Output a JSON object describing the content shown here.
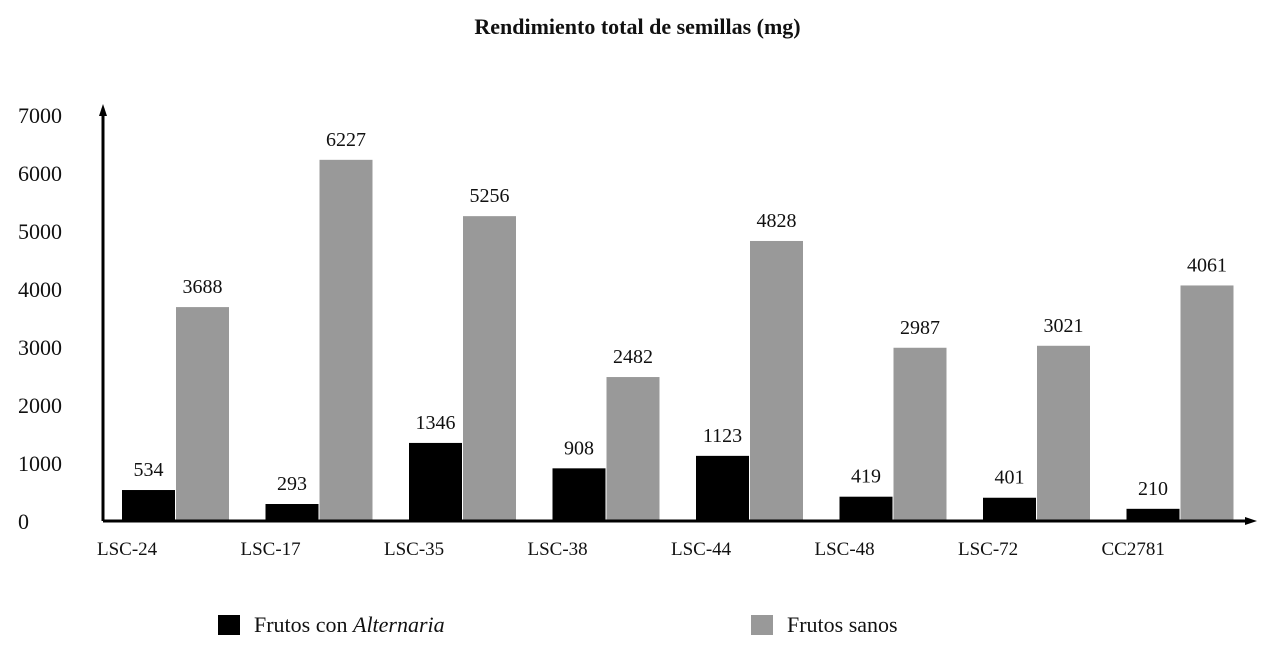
{
  "chart_data": {
    "type": "bar",
    "title": "Rendimiento total de semillas (mg)",
    "categories": [
      "LSC-24",
      "LSC-17",
      "LSC-35",
      "LSC-38",
      "LSC-44",
      "LSC-48",
      "LSC-72",
      "CC2781"
    ],
    "series": [
      {
        "name_prefix": "Frutos con ",
        "name_italic": "Alternaria",
        "color": "#000000",
        "values": [
          534,
          293,
          1346,
          908,
          1123,
          419,
          401,
          210
        ]
      },
      {
        "name": "Frutos sanos",
        "color": "#999999",
        "values": [
          3688,
          6227,
          5256,
          2482,
          4828,
          2987,
          3021,
          4061
        ]
      }
    ],
    "yticks": [
      0,
      1000,
      2000,
      3000,
      4000,
      5000,
      6000,
      7000
    ],
    "ylim": [
      0,
      7000
    ],
    "xlabel": "",
    "ylabel": "",
    "grid": false,
    "legend_position": "bottom"
  }
}
